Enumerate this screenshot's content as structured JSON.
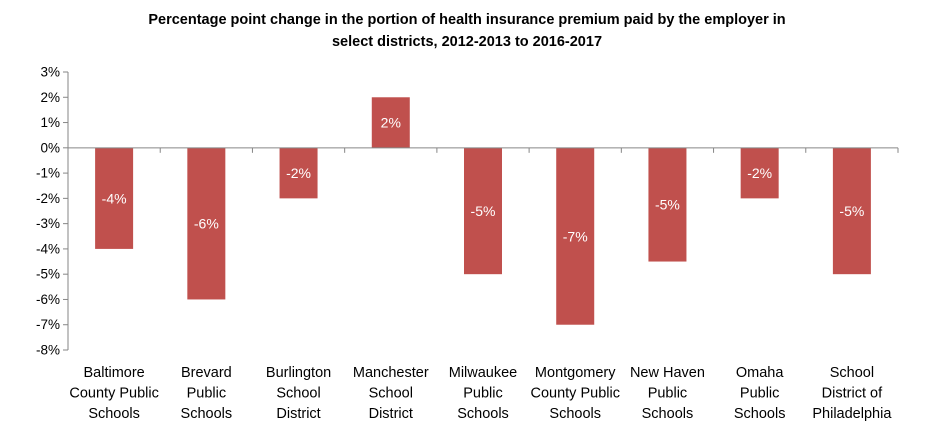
{
  "chart_data": {
    "type": "bar",
    "title": "Percentage point change in the portion of health insurance premium paid by the employer in select districts,  2012-2013 to 2016-2017",
    "title_lines": [
      "Percentage point change in the portion of health insurance premium paid by the employer in",
      "select districts,  2012-2013 to 2016-2017"
    ],
    "categories": [
      [
        "Baltimore",
        "County Public",
        "Schools"
      ],
      [
        "Brevard",
        "Public",
        "Schools"
      ],
      [
        "Burlington",
        "School",
        "District"
      ],
      [
        "Manchester",
        "School",
        "District"
      ],
      [
        "Milwaukee",
        "Public",
        "Schools"
      ],
      [
        "Montgomery",
        "County Public",
        "Schools"
      ],
      [
        "New Haven",
        "Public",
        "Schools"
      ],
      [
        "Omaha",
        "Public",
        "Schools"
      ],
      [
        "School",
        "District of",
        "Philadelphia"
      ]
    ],
    "values": [
      -4,
      -6,
      -2,
      2,
      -5,
      -7,
      -4.5,
      -2,
      -5
    ],
    "data_labels": [
      "-4%",
      "-6%",
      "-2%",
      "2%",
      "-5%",
      "-7%",
      "-5%",
      "-2%",
      "-5%"
    ],
    "ylim": [
      -8,
      3
    ],
    "y_ticks": [
      3,
      2,
      1,
      0,
      -1,
      -2,
      -3,
      -4,
      -5,
      -6,
      -7,
      -8
    ],
    "y_tick_labels": [
      "3%",
      "2%",
      "1%",
      "0%",
      "-1%",
      "-2%",
      "-3%",
      "-4%",
      "-5%",
      "-6%",
      "-7%",
      "-8%"
    ],
    "xlabel": "",
    "ylabel": "",
    "grid": false,
    "legend": "none",
    "bar_color": "#c0504d",
    "axis_color": "#868686"
  }
}
